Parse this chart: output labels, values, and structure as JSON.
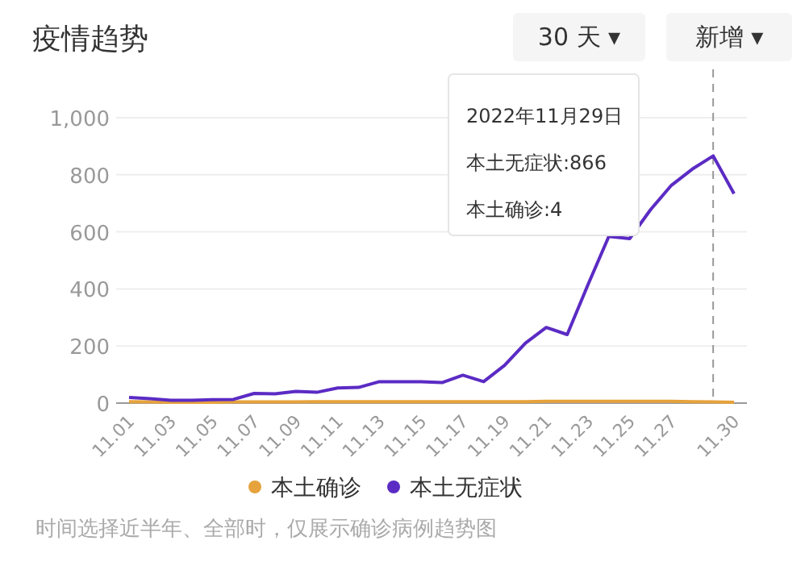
{
  "chart_data": {
    "type": "line",
    "title": "疫情趋势",
    "annotations": [
      "30 天 ▾",
      "新增 ▾",
      "2022年11月29日",
      "本土无症状:866",
      "本土确诊:4",
      "时间选择近半年、全部时，仅展示确诊病例趋势图"
    ],
    "categories": [
      "11.01",
      null,
      "11.03",
      null,
      "11.05",
      null,
      "11.07",
      null,
      "11.09",
      null,
      "11.11",
      null,
      "11.13",
      null,
      "11.15",
      null,
      "11.17",
      null,
      "11.19",
      null,
      "11.21",
      null,
      "11.23",
      null,
      "11.25",
      null,
      "11.27",
      null,
      null,
      "11.30"
    ],
    "series": [
      {
        "name": "本土确诊",
        "color": "#e6a23c",
        "values": [
          5,
          4,
          3,
          3,
          3,
          4,
          4,
          4,
          4,
          5,
          5,
          5,
          5,
          5,
          5,
          5,
          5,
          5,
          5,
          5,
          6,
          6,
          6,
          6,
          6,
          6,
          6,
          5,
          4,
          3
        ]
      },
      {
        "name": "本土无症状",
        "color": "#5b2bc4",
        "values": [
          20,
          15,
          10,
          10,
          12,
          13,
          34,
          32,
          41,
          38,
          53,
          55,
          75,
          75,
          75,
          72,
          98,
          75,
          132,
          210,
          265,
          240,
          415,
          584,
          576,
          678,
          763,
          820,
          866,
          734
        ]
      }
    ],
    "ylim": [
      0,
      1000
    ],
    "yticks": [
      0,
      200,
      400,
      600,
      800,
      {
        "value": 1000,
        "label": "1,000"
      }
    ],
    "grid": "y",
    "legend": "bottom",
    "marker": "none",
    "line_style": "solid"
  }
}
